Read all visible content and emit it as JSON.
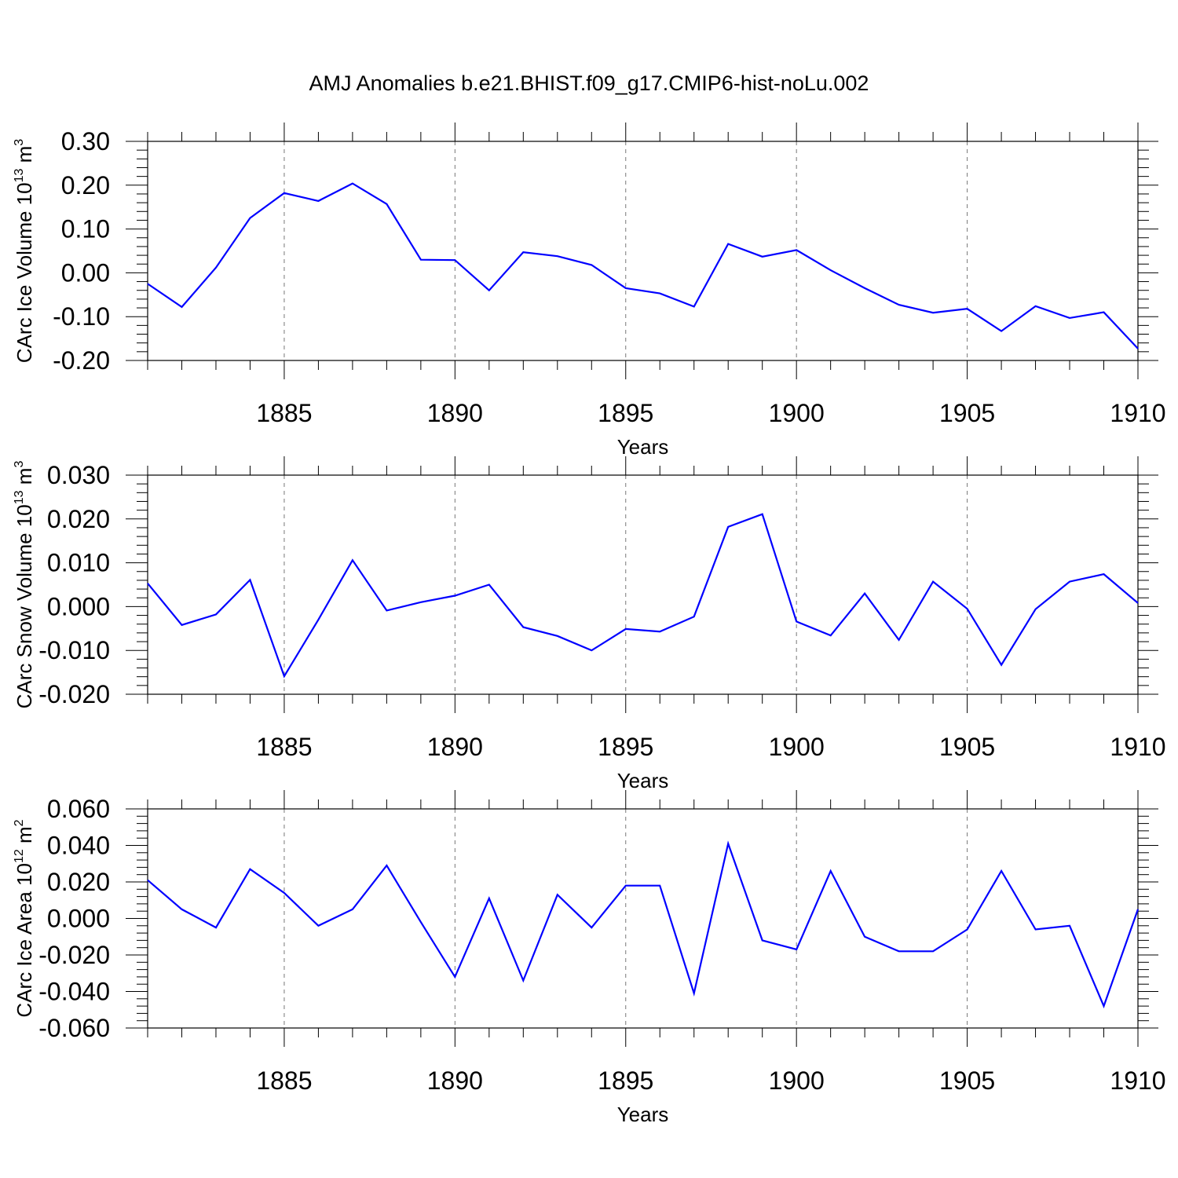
{
  "title": "AMJ Anomalies b.e21.BHIST.f09_g17.CMIP6-hist-noLu.002",
  "line_color": "#0000ff",
  "chart_data": [
    {
      "type": "line",
      "xlabel": "Years",
      "ylabel": {
        "base": "CArc Ice Volume 10",
        "exp": "13",
        "unit": " m",
        "unit_exp": "3"
      },
      "xlim": [
        1881,
        1910
      ],
      "ylim": [
        -0.2,
        0.3
      ],
      "yticks": [
        "0.30",
        "0.20",
        "0.10",
        "0.00",
        "-0.10",
        "-0.20"
      ],
      "xticks": [
        "1885",
        "1890",
        "1895",
        "1900",
        "1905",
        "1910"
      ],
      "x": [
        1881,
        1882,
        1883,
        1884,
        1885,
        1886,
        1887,
        1888,
        1889,
        1890,
        1891,
        1892,
        1893,
        1894,
        1895,
        1896,
        1897,
        1898,
        1899,
        1900,
        1901,
        1902,
        1903,
        1904,
        1905,
        1906,
        1907,
        1908,
        1909,
        1910
      ],
      "values": [
        -0.025,
        -0.078,
        0.012,
        0.125,
        0.182,
        0.164,
        0.204,
        0.157,
        0.03,
        0.029,
        -0.04,
        0.047,
        0.038,
        0.018,
        -0.035,
        -0.047,
        -0.077,
        0.066,
        0.037,
        0.052,
        0.006,
        -0.035,
        -0.073,
        -0.091,
        -0.082,
        -0.133,
        -0.076,
        -0.103,
        -0.09,
        -0.173
      ]
    },
    {
      "type": "line",
      "xlabel": "Years",
      "ylabel": {
        "base": "CArc Snow Volume 10",
        "exp": "13",
        "unit": " m",
        "unit_exp": "3"
      },
      "xlim": [
        1881,
        1910
      ],
      "ylim": [
        -0.02,
        0.03
      ],
      "yticks": [
        "0.030",
        "0.020",
        "0.010",
        "0.000",
        "-0.010",
        "-0.020"
      ],
      "xticks": [
        "1885",
        "1890",
        "1895",
        "1900",
        "1905",
        "1910"
      ],
      "x": [
        1881,
        1882,
        1883,
        1884,
        1885,
        1886,
        1887,
        1888,
        1889,
        1890,
        1891,
        1892,
        1893,
        1894,
        1895,
        1896,
        1897,
        1898,
        1899,
        1900,
        1901,
        1902,
        1903,
        1904,
        1905,
        1906,
        1907,
        1908,
        1909,
        1910
      ],
      "values": [
        0.0053,
        -0.0042,
        -0.0018,
        0.0061,
        -0.0159,
        -0.003,
        0.0106,
        -0.0009,
        0.001,
        0.0025,
        0.005,
        -0.0047,
        -0.0067,
        -0.01,
        -0.0051,
        -0.0057,
        -0.0023,
        0.0182,
        0.0211,
        -0.0034,
        -0.0066,
        0.003,
        -0.0076,
        0.0057,
        -0.0005,
        -0.0133,
        -0.0006,
        0.0057,
        0.0074,
        0.0008
      ]
    },
    {
      "type": "line",
      "xlabel": "Years",
      "ylabel": {
        "base": "CArc Ice Area 10",
        "exp": "12",
        "unit": " m",
        "unit_exp": "2"
      },
      "xlim": [
        1881,
        1910
      ],
      "ylim": [
        -0.06,
        0.06
      ],
      "yticks": [
        "0.060",
        "0.040",
        "0.020",
        "0.000",
        "-0.020",
        "-0.040",
        "-0.060"
      ],
      "xticks": [
        "1885",
        "1890",
        "1895",
        "1900",
        "1905",
        "1910"
      ],
      "x": [
        1881,
        1882,
        1883,
        1884,
        1885,
        1886,
        1887,
        1888,
        1889,
        1890,
        1891,
        1892,
        1893,
        1894,
        1895,
        1896,
        1897,
        1898,
        1899,
        1900,
        1901,
        1902,
        1903,
        1904,
        1905,
        1906,
        1907,
        1908,
        1909,
        1910
      ],
      "values": [
        0.021,
        0.005,
        -0.005,
        0.027,
        0.014,
        -0.004,
        0.005,
        0.029,
        -0.002,
        -0.032,
        0.011,
        -0.034,
        0.013,
        -0.005,
        0.018,
        0.018,
        -0.041,
        0.041,
        -0.012,
        -0.017,
        0.026,
        -0.01,
        -0.018,
        -0.018,
        -0.006,
        0.026,
        -0.006,
        -0.004,
        -0.048,
        0.005
      ]
    }
  ]
}
